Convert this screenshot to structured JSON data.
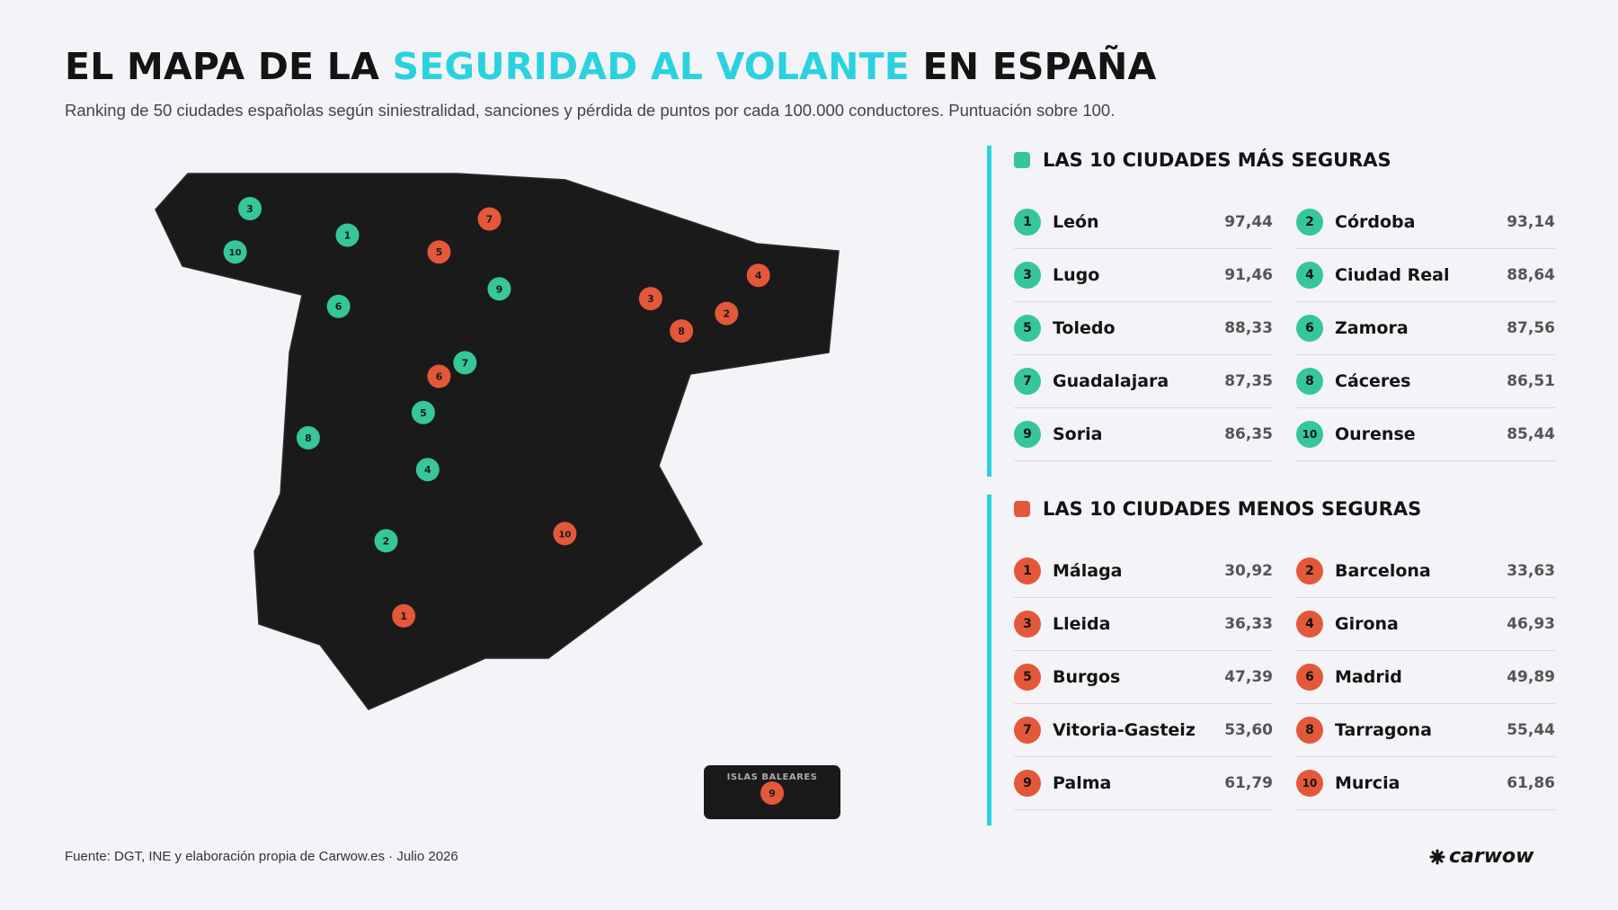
{
  "title": {
    "part1": "EL MAPA DE LA",
    "highlight": "SEGURIDAD AL VOLANTE",
    "part2": "EN ESPAÑA",
    "highlight_color": "#2ad2e0"
  },
  "subtitle": "Ranking de 50 ciudades españolas según siniestralidad, sanciones y pérdida de puntos por cada 100.000 conductores. Puntuación sobre 100.",
  "colors": {
    "safe": "#35c79a",
    "unsafe": "#e4583a",
    "map_fill": "#1a1a1a",
    "accent": "#2ad2e0"
  },
  "map": {
    "safe_markers": [
      {
        "rank": "1",
        "city": "León",
        "lat": 42.6,
        "lon": -5.57
      },
      {
        "rank": "2",
        "city": "Córdoba",
        "lat": 37.88,
        "lon": -4.78
      },
      {
        "rank": "3",
        "city": "Lugo",
        "lat": 43.01,
        "lon": -7.56
      },
      {
        "rank": "4",
        "city": "Ciudad Real",
        "lat": 38.98,
        "lon": -3.93
      },
      {
        "rank": "5",
        "city": "Toledo",
        "lat": 39.86,
        "lon": -4.02
      },
      {
        "rank": "6",
        "city": "Zamora",
        "lat": 41.5,
        "lon": -5.75
      },
      {
        "rank": "7",
        "city": "Guadalajara",
        "lat": 40.63,
        "lon": -3.17
      },
      {
        "rank": "8",
        "city": "Cáceres",
        "lat": 39.47,
        "lon": -6.37
      },
      {
        "rank": "9",
        "city": "Soria",
        "lat": 41.77,
        "lon": -2.47
      },
      {
        "rank": "10",
        "city": "Ourense",
        "lat": 42.34,
        "lon": -7.86
      }
    ],
    "unsafe_markers": [
      {
        "rank": "1",
        "city": "Málaga",
        "lat": 36.72,
        "lon": -4.42
      },
      {
        "rank": "2",
        "city": "Barcelona",
        "lat": 41.39,
        "lon": 2.17
      },
      {
        "rank": "3",
        "city": "Lleida",
        "lat": 41.62,
        "lon": 0.62
      },
      {
        "rank": "4",
        "city": "Girona",
        "lat": 41.98,
        "lon": 2.82
      },
      {
        "rank": "5",
        "city": "Burgos",
        "lat": 42.34,
        "lon": -3.7
      },
      {
        "rank": "6",
        "city": "Madrid",
        "lat": 40.42,
        "lon": -3.7
      },
      {
        "rank": "7",
        "city": "Vitoria-Gasteiz",
        "lat": 42.85,
        "lon": -2.67
      },
      {
        "rank": "8",
        "city": "Tarragona",
        "lat": 41.12,
        "lon": 1.25
      },
      {
        "rank": "10",
        "city": "Murcia",
        "lat": 37.99,
        "lon": -1.13
      }
    ],
    "baleares": {
      "label": "ISLAS BALEARES",
      "rank": "9",
      "city": "Palma"
    }
  },
  "safest": {
    "heading": "LAS 10 CIUDADES MÁS SEGURAS",
    "items": [
      {
        "rank": "1",
        "city": "León",
        "score": "97,44"
      },
      {
        "rank": "2",
        "city": "Córdoba",
        "score": "93,14"
      },
      {
        "rank": "3",
        "city": "Lugo",
        "score": "91,46"
      },
      {
        "rank": "4",
        "city": "Ciudad Real",
        "score": "88,64"
      },
      {
        "rank": "5",
        "city": "Toledo",
        "score": "88,33"
      },
      {
        "rank": "6",
        "city": "Zamora",
        "score": "87,56"
      },
      {
        "rank": "7",
        "city": "Guadalajara",
        "score": "87,35"
      },
      {
        "rank": "8",
        "city": "Cáceres",
        "score": "86,51"
      },
      {
        "rank": "9",
        "city": "Soria",
        "score": "86,35"
      },
      {
        "rank": "10",
        "city": "Ourense",
        "score": "85,44"
      }
    ]
  },
  "least_safe": {
    "heading": "LAS 10 CIUDADES MENOS SEGURAS",
    "items": [
      {
        "rank": "1",
        "city": "Málaga",
        "score": "30,92"
      },
      {
        "rank": "2",
        "city": "Barcelona",
        "score": "33,63"
      },
      {
        "rank": "3",
        "city": "Lleida",
        "score": "36,33"
      },
      {
        "rank": "4",
        "city": "Girona",
        "score": "46,93"
      },
      {
        "rank": "5",
        "city": "Burgos",
        "score": "47,39"
      },
      {
        "rank": "6",
        "city": "Madrid",
        "score": "49,89"
      },
      {
        "rank": "7",
        "city": "Vitoria-Gasteiz",
        "score": "53,60"
      },
      {
        "rank": "8",
        "city": "Tarragona",
        "score": "55,44"
      },
      {
        "rank": "9",
        "city": "Palma",
        "score": "61,79"
      },
      {
        "rank": "10",
        "city": "Murcia",
        "score": "61,86"
      }
    ]
  },
  "footer": {
    "source": "Fuente: DGT, INE y elaboración propia de Carwow.es · Julio 2026"
  },
  "logo": {
    "text": "carwow",
    "icon": "carwow-logo-icon"
  }
}
